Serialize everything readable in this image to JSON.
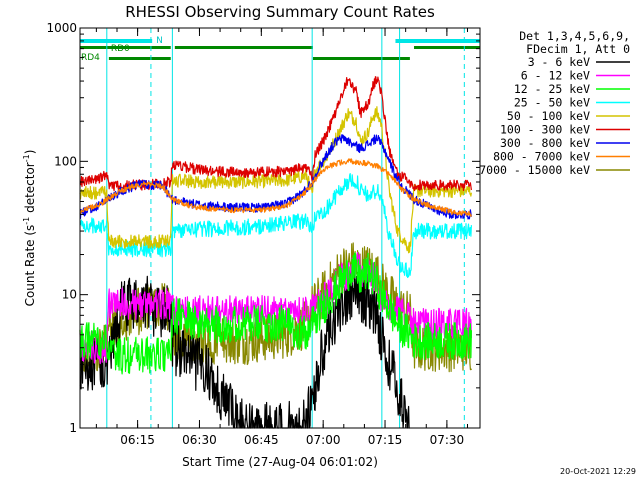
{
  "chart_data": {
    "type": "line",
    "title": "RHESSI Observing Summary Count Rates",
    "xlabel": "Start Time (27-Aug-04 06:01:02)",
    "ylabel": "Count Rate (s",
    "ylabel_sup": "-1",
    "ylabel_tail": " detector",
    "ylabel_sup2": "-1",
    "ylabel_close": ")",
    "yscale": "log",
    "ylim": [
      1,
      1000
    ],
    "xlim_minutes_from_start": [
      0,
      97
    ],
    "x_ticks": [
      {
        "t": 13.97,
        "label": "06:15"
      },
      {
        "t": 28.97,
        "label": "06:30"
      },
      {
        "t": 43.97,
        "label": "06:45"
      },
      {
        "t": 58.97,
        "label": "07:00"
      },
      {
        "t": 73.97,
        "label": "07:15"
      },
      {
        "t": 88.97,
        "label": "07:30"
      }
    ],
    "y_ticks": [
      {
        "v": 1,
        "label": "1"
      },
      {
        "v": 10,
        "label": "10"
      },
      {
        "v": 100,
        "label": "100"
      },
      {
        "v": 1000,
        "label": "1000"
      }
    ],
    "legend_header": [
      "Det 1,3,4,5,6,9,",
      "FDecim 1, Att 0"
    ],
    "legend_position": "right",
    "timestamp": "20-Oct-2021 12:29",
    "flags": {
      "N_label": "N",
      "RD0_label": "RD0",
      "RD4_label": "RD4",
      "night_bars": [
        [
          0,
          17.5
        ],
        [
          76.5,
          97
        ]
      ],
      "rd0_bars": [
        [
          0,
          22
        ],
        [
          23,
          56.5
        ],
        [
          81,
          97
        ]
      ],
      "rd4_bars": [
        [
          7,
          22
        ],
        [
          56.5,
          80
        ]
      ]
    },
    "vlines": {
      "cyan_solid": [
        6.5,
        22.4,
        56.3,
        73.2,
        77.5
      ],
      "cyan_dashed": [
        17.2,
        93.2
      ]
    },
    "series": [
      {
        "name": "3 - 6 keV",
        "color": "#000000",
        "x": [
          0,
          3,
          6.5,
          7,
          10,
          14,
          17,
          18,
          22,
          22.4,
          26,
          28,
          30,
          33,
          36,
          40,
          45,
          50,
          54,
          56.3,
          57,
          59,
          61,
          63,
          64,
          66,
          68,
          70,
          72,
          73,
          75,
          77,
          78,
          80
        ],
        "y": [
          3,
          3,
          3,
          3,
          8,
          9,
          9,
          7,
          8,
          4,
          3.5,
          3,
          3,
          2,
          1.5,
          1,
          1,
          1,
          1,
          1.5,
          2,
          4,
          6,
          8,
          9,
          10,
          9.5,
          9,
          7,
          5,
          3,
          2,
          1.5,
          1
        ]
      },
      {
        "name": "6 - 12 keV",
        "color": "#ff00ff",
        "x": [
          0,
          3,
          6.5,
          7,
          10,
          14,
          17,
          22,
          22.4,
          26,
          30,
          35,
          40,
          45,
          50,
          55,
          56.3,
          57,
          60,
          63,
          66,
          67,
          68,
          69,
          70,
          72,
          73,
          75,
          77,
          80,
          81,
          85,
          90,
          95
        ],
        "y": [
          4,
          4,
          4,
          8.5,
          8.5,
          8.5,
          8.5,
          8.5,
          7.5,
          7.5,
          7.5,
          7.5,
          7.5,
          7.5,
          7.5,
          7.5,
          8,
          8,
          10,
          13,
          15,
          17,
          15,
          14,
          15,
          12,
          9,
          8,
          7.5,
          7,
          6,
          6,
          6,
          6
        ]
      },
      {
        "name": "12 - 25 keV",
        "color": "#00ff00",
        "x": [
          0,
          3,
          6.5,
          7,
          12,
          17,
          22,
          22.4,
          30,
          40,
          50,
          55,
          56.3,
          60,
          63,
          66,
          68,
          70,
          72,
          73,
          75,
          77,
          80,
          81,
          85,
          90,
          95
        ],
        "y": [
          4.5,
          4.5,
          4.5,
          3.5,
          3.5,
          3.5,
          3.5,
          7,
          6,
          6,
          6,
          5,
          6,
          9,
          12,
          16,
          13,
          15,
          12,
          10,
          8,
          6,
          5,
          4.5,
          4.5,
          4.5,
          4.5
        ]
      },
      {
        "name": "25 - 50 keV",
        "color": "#00ffff",
        "x": [
          0,
          3,
          6.5,
          7,
          12,
          17,
          22,
          22.4,
          30,
          40,
          50,
          55,
          56.3,
          57,
          60,
          63,
          65,
          67,
          68,
          70,
          71,
          72,
          73,
          75,
          77,
          80,
          81,
          85,
          90,
          95
        ],
        "y": [
          33,
          33,
          33,
          22,
          22,
          22,
          22,
          30,
          31,
          32,
          34,
          36,
          30,
          38,
          45,
          60,
          70,
          72,
          60,
          55,
          58,
          60,
          55,
          28,
          18,
          14,
          30,
          30,
          30,
          30
        ]
      },
      {
        "name": "50 - 100 keV",
        "color": "#d4c400",
        "x": [
          0,
          3,
          6.5,
          7,
          12,
          17,
          22,
          22.4,
          30,
          40,
          50,
          55,
          56.3,
          57,
          60,
          63,
          65,
          67,
          68,
          70,
          71,
          72,
          73,
          75,
          77,
          80,
          81,
          85,
          90,
          95
        ],
        "y": [
          58,
          58,
          58,
          25,
          25,
          25,
          25,
          72,
          70,
          70,
          72,
          78,
          55,
          85,
          110,
          170,
          230,
          200,
          140,
          165,
          220,
          230,
          195,
          60,
          30,
          22,
          60,
          60,
          60,
          60
        ]
      },
      {
        "name": "100 - 300 keV",
        "color": "#dd0000",
        "x": [
          0,
          3,
          6.5,
          7,
          12,
          17,
          22,
          22.4,
          30,
          40,
          50,
          55,
          56.3,
          57,
          60,
          63,
          65,
          67,
          68,
          70,
          71,
          72,
          73,
          75,
          77,
          80,
          81,
          85,
          90,
          95
        ],
        "y": [
          70,
          72,
          78,
          65,
          66,
          67,
          70,
          95,
          85,
          82,
          84,
          90,
          75,
          110,
          165,
          280,
          420,
          330,
          230,
          270,
          370,
          420,
          340,
          120,
          80,
          70,
          66,
          66,
          66,
          66
        ]
      },
      {
        "name": "300 - 800 keV",
        "color": "#0000ee",
        "x": [
          0,
          5,
          10,
          15,
          20,
          22.4,
          27,
          32,
          38,
          44,
          50,
          54,
          56.3,
          58,
          60,
          62,
          64,
          66,
          68,
          70,
          72,
          74,
          76,
          78,
          81,
          85,
          90,
          95
        ],
        "y": [
          40,
          48,
          60,
          68,
          65,
          52,
          48,
          46,
          45,
          45,
          48,
          58,
          70,
          90,
          115,
          140,
          150,
          135,
          125,
          135,
          150,
          120,
          85,
          65,
          52,
          45,
          40,
          40
        ]
      },
      {
        "name": "800 - 7000 keV",
        "color": "#ff7f00",
        "x": [
          0,
          5,
          10,
          15,
          20,
          22.4,
          27,
          32,
          38,
          44,
          50,
          54,
          56.3,
          58,
          60,
          62,
          64,
          66,
          68,
          70,
          72,
          74,
          76,
          78,
          81,
          85,
          90,
          95
        ],
        "y": [
          42,
          48,
          60,
          68,
          65,
          52,
          46,
          44,
          43,
          43,
          46,
          56,
          68,
          80,
          90,
          96,
          100,
          100,
          98,
          96,
          92,
          84,
          74,
          62,
          52,
          46,
          42,
          40
        ]
      },
      {
        "name": "7000 - 15000 keV",
        "color": "#888800",
        "x": [
          0,
          3,
          6.5,
          7,
          12,
          17,
          22,
          22.4,
          30,
          40,
          50,
          55,
          56.3,
          60,
          63,
          66,
          68,
          70,
          72,
          73,
          75,
          77,
          80,
          81,
          85,
          90,
          95
        ],
        "y": [
          4,
          4,
          4,
          6,
          7,
          8,
          8,
          5,
          4.5,
          4.5,
          5,
          6,
          8,
          11,
          15,
          17,
          16,
          16,
          14,
          12,
          10,
          8,
          7,
          4,
          4,
          4,
          4
        ]
      }
    ]
  }
}
